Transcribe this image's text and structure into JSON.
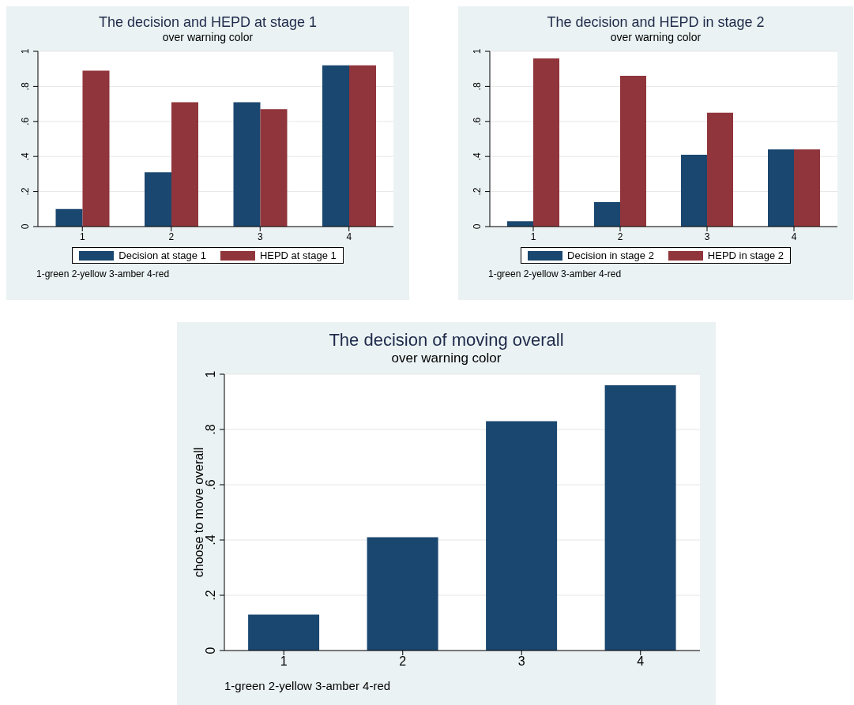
{
  "chart_data": [
    {
      "type": "bar",
      "title": "The decision and HEPD at stage 1",
      "subtitle": "over warning color",
      "categories": [
        "1",
        "2",
        "3",
        "4"
      ],
      "series": [
        {
          "name": "Decision at stage 1",
          "color": "#1a476f",
          "values": [
            0.1,
            0.31,
            0.71,
            0.92
          ]
        },
        {
          "name": "HEPD at stage 1",
          "color": "#90353b",
          "values": [
            0.89,
            0.71,
            0.67,
            0.92
          ]
        }
      ],
      "ylim": [
        0,
        1
      ],
      "yticks": [
        {
          "value": 0,
          "label": "0"
        },
        {
          "value": 0.2,
          "label": ".2"
        },
        {
          "value": 0.4,
          "label": ".4"
        },
        {
          "value": 0.6,
          "label": ".6"
        },
        {
          "value": 0.8,
          "label": ".8"
        },
        {
          "value": 1,
          "label": "1"
        }
      ],
      "grid": "y",
      "legend": "bottom",
      "annotations": [
        "1-green 2-yellow 3-amber 4-red"
      ]
    },
    {
      "type": "bar",
      "title": "The decision and HEPD in stage 2",
      "subtitle": "over warning color",
      "categories": [
        "1",
        "2",
        "3",
        "4"
      ],
      "series": [
        {
          "name": "Decision in stage 2",
          "color": "#1a476f",
          "values": [
            0.03,
            0.14,
            0.41,
            0.44
          ]
        },
        {
          "name": "HEPD in stage 2",
          "color": "#90353b",
          "values": [
            0.96,
            0.86,
            0.65,
            0.44
          ]
        }
      ],
      "ylim": [
        0,
        1
      ],
      "yticks": [
        {
          "value": 0,
          "label": "0"
        },
        {
          "value": 0.2,
          "label": ".2"
        },
        {
          "value": 0.4,
          "label": ".4"
        },
        {
          "value": 0.6,
          "label": ".6"
        },
        {
          "value": 0.8,
          "label": ".8"
        },
        {
          "value": 1,
          "label": "1"
        }
      ],
      "grid": "y",
      "legend": "bottom",
      "annotations": [
        "1-green 2-yellow 3-amber 4-red"
      ]
    },
    {
      "type": "bar",
      "title": "The decision of moving overall",
      "subtitle": "over warning color",
      "ylabel": "choose to move overall",
      "categories": [
        "1",
        "2",
        "3",
        "4"
      ],
      "values": [
        0.13,
        0.41,
        0.83,
        0.96
      ],
      "color": "#1a476f",
      "ylim": [
        0,
        1
      ],
      "yticks": [
        {
          "value": 0,
          "label": "0"
        },
        {
          "value": 0.2,
          "label": ".2"
        },
        {
          "value": 0.4,
          "label": ".4"
        },
        {
          "value": 0.6,
          "label": ".6"
        },
        {
          "value": 0.8,
          "label": ".8"
        },
        {
          "value": 1,
          "label": "1"
        }
      ],
      "grid": "y",
      "annotations": [
        "1-green 2-yellow 3-amber 4-red"
      ]
    }
  ]
}
